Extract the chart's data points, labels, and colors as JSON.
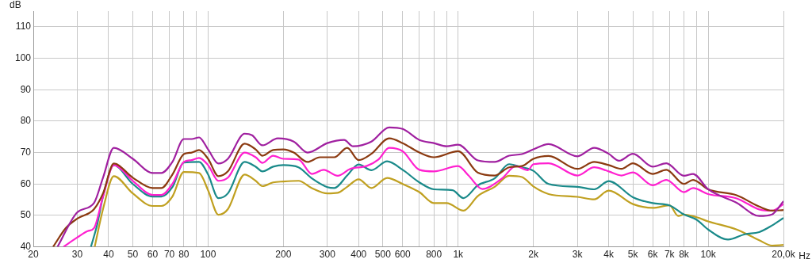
{
  "chart_data": {
    "type": "line",
    "xlabel": "Hz",
    "ylabel": "dB",
    "log": "x",
    "grid": true,
    "legend": false,
    "marker": "none",
    "line_style": "solid",
    "xlim": [
      20,
      20000
    ],
    "ylim": [
      40,
      115
    ],
    "xticks": [
      20,
      30,
      40,
      50,
      60,
      70,
      80,
      {
        "value": 90,
        "label": null
      },
      100,
      200,
      300,
      400,
      500,
      600,
      {
        "value": 700,
        "label": null
      },
      800,
      {
        "value": 900,
        "label": null
      },
      {
        "value": 1000,
        "label": "1k"
      },
      {
        "value": 2000,
        "label": "2k"
      },
      {
        "value": 3000,
        "label": "3k"
      },
      {
        "value": 4000,
        "label": "4k"
      },
      {
        "value": 5000,
        "label": "5k"
      },
      {
        "value": 6000,
        "label": "6k"
      },
      {
        "value": 7000,
        "label": "7k"
      },
      {
        "value": 8000,
        "label": "8k"
      },
      {
        "value": 9000,
        "label": null
      },
      {
        "value": 10000,
        "label": "10k"
      },
      {
        "value": 20000,
        "label": "20,0k"
      }
    ],
    "yticks": [
      40,
      50,
      60,
      70,
      80,
      90,
      100,
      110
    ],
    "series": [
      {
        "color": "#a020a0",
        "x": [
          25,
          30,
          35,
          38,
          42,
          50,
          60,
          65,
          72,
          80,
          86,
          92,
          100,
          110,
          120,
          140,
          150,
          165,
          190,
          220,
          250,
          300,
          350,
          380,
          450,
          530,
          600,
          700,
          800,
          900,
          1000,
          1200,
          1400,
          1600,
          1800,
          2000,
          2300,
          3000,
          3500,
          4000,
          4400,
          5000,
          6000,
          6800,
          8000,
          8700,
          10000,
          13000,
          16000,
          18000,
          20000
        ],
        "values": [
          40,
          51,
          54,
          62,
          71.5,
          68,
          63.5,
          63.5,
          67,
          74.3,
          74.3,
          74.8,
          71,
          66.5,
          68,
          76,
          75.5,
          72.3,
          74.5,
          73.5,
          70,
          73,
          74,
          72,
          73.5,
          78,
          77.5,
          74,
          73,
          72,
          72.5,
          67.5,
          67,
          69,
          69.5,
          71,
          72.7,
          68.8,
          71.5,
          69.6,
          67.4,
          69.6,
          65.5,
          66.6,
          62.6,
          63.2,
          58.3,
          54,
          49.8,
          50.3,
          54.5
        ]
      },
      {
        "color": "#8b3a10",
        "x": [
          24,
          27,
          30,
          35,
          38,
          42,
          50,
          60,
          65,
          72,
          80,
          86,
          92,
          100,
          110,
          120,
          140,
          155,
          165,
          182,
          200,
          220,
          250,
          280,
          320,
          360,
          400,
          450,
          530,
          600,
          700,
          800,
          1000,
          1200,
          1400,
          1600,
          1800,
          2000,
          2300,
          3000,
          3500,
          4000,
          4500,
          5000,
          6000,
          6800,
          8000,
          8700,
          10000,
          13000,
          16000,
          18000,
          20000
        ],
        "values": [
          40,
          46,
          49,
          52,
          57,
          66.5,
          62,
          58.7,
          58.7,
          63,
          69.5,
          70,
          70.8,
          68,
          62.5,
          64,
          72.8,
          71,
          69,
          70.8,
          71,
          70,
          67,
          68.5,
          68.5,
          71.5,
          67.6,
          69.6,
          74.5,
          73,
          70,
          68.5,
          70.4,
          63.6,
          62.7,
          65.3,
          65.7,
          68,
          68.9,
          64.8,
          67,
          66,
          64.8,
          66.6,
          63.2,
          64.5,
          60,
          61.3,
          58.3,
          56.4,
          52.8,
          51.5,
          51.7
        ]
      },
      {
        "color": "#ff20d0",
        "x": [
          26.4,
          30,
          33,
          35,
          38,
          42,
          50,
          60,
          65,
          72,
          80,
          86,
          92,
          100,
          110,
          120,
          140,
          155,
          165,
          182,
          200,
          230,
          260,
          290,
          330,
          370,
          430,
          480,
          530,
          600,
          700,
          800,
          1000,
          1100,
          1250,
          1500,
          1700,
          1900,
          2000,
          2300,
          3000,
          3500,
          4000,
          4500,
          5000,
          6000,
          6800,
          8000,
          8700,
          10000,
          13000,
          16000,
          18000,
          20000
        ],
        "values": [
          40,
          43,
          45,
          46,
          56,
          66,
          61,
          56.5,
          56.5,
          60,
          67,
          67.6,
          68.3,
          66,
          61,
          62,
          70,
          68.5,
          66.7,
          69,
          68,
          67.8,
          63.2,
          64.5,
          62.6,
          64.8,
          65.7,
          67.8,
          71.5,
          70.4,
          64.5,
          64,
          65.7,
          62.7,
          58.4,
          61.8,
          65.7,
          64.4,
          66.3,
          66.6,
          62.7,
          65.3,
          64,
          62.7,
          63.7,
          59.6,
          61.3,
          57.4,
          58.7,
          56.8,
          55.4,
          51.9,
          51.5,
          53.6
        ]
      },
      {
        "color": "#1a8a8a",
        "x": [
          34,
          36,
          38,
          42,
          50,
          60,
          65,
          72,
          80,
          92,
          100,
          110,
          120,
          140,
          155,
          165,
          182,
          200,
          230,
          260,
          300,
          320,
          360,
          400,
          450,
          520,
          600,
          700,
          800,
          950,
          1050,
          1200,
          1400,
          1600,
          1800,
          2000,
          2300,
          3000,
          3500,
          4000,
          5000,
          6000,
          7000,
          8000,
          9000,
          10000,
          12000,
          14000,
          16000,
          18000,
          20000
        ],
        "values": [
          40,
          47,
          56,
          66,
          60,
          56,
          56,
          59,
          66.8,
          67,
          63,
          55.5,
          57,
          67,
          65.5,
          64,
          65.5,
          66,
          65.3,
          61.8,
          59,
          58.7,
          62.7,
          66.2,
          64.4,
          67.2,
          64.5,
          60.5,
          58.3,
          58,
          55.5,
          59.6,
          61.8,
          66.3,
          65.3,
          64.2,
          60,
          59.1,
          58.3,
          60.9,
          55.8,
          53.9,
          53.2,
          50.3,
          48.6,
          45.5,
          42.3,
          44,
          44.7,
          46.8,
          49.2
        ]
      },
      {
        "color": "#c0a020",
        "x": [
          35.2,
          38,
          42,
          50,
          60,
          65,
          72,
          80,
          92,
          100,
          110,
          120,
          140,
          155,
          165,
          182,
          200,
          230,
          260,
          300,
          330,
          360,
          400,
          450,
          520,
          600,
          700,
          800,
          900,
          1050,
          1200,
          1400,
          1600,
          1800,
          2000,
          2300,
          3000,
          3500,
          4000,
          5000,
          6000,
          7000,
          7600,
          8000,
          9000,
          10000,
          13000,
          16000,
          18000,
          20000
        ],
        "values": [
          40,
          52,
          62.5,
          57,
          53,
          53,
          56,
          63.8,
          63.5,
          58,
          50.2,
          52,
          63,
          61,
          59.3,
          60.5,
          60.8,
          61,
          58.7,
          57,
          57.2,
          59.1,
          61.5,
          58.7,
          61.9,
          60,
          57.4,
          53.9,
          53.9,
          51.5,
          56.2,
          59.1,
          62.6,
          62.2,
          59.2,
          56.8,
          55.9,
          55.1,
          57.9,
          53.6,
          52.4,
          53.2,
          49.8,
          50.3,
          49.4,
          48.1,
          45.5,
          42.1,
          40.4,
          40.6
        ]
      }
    ]
  }
}
